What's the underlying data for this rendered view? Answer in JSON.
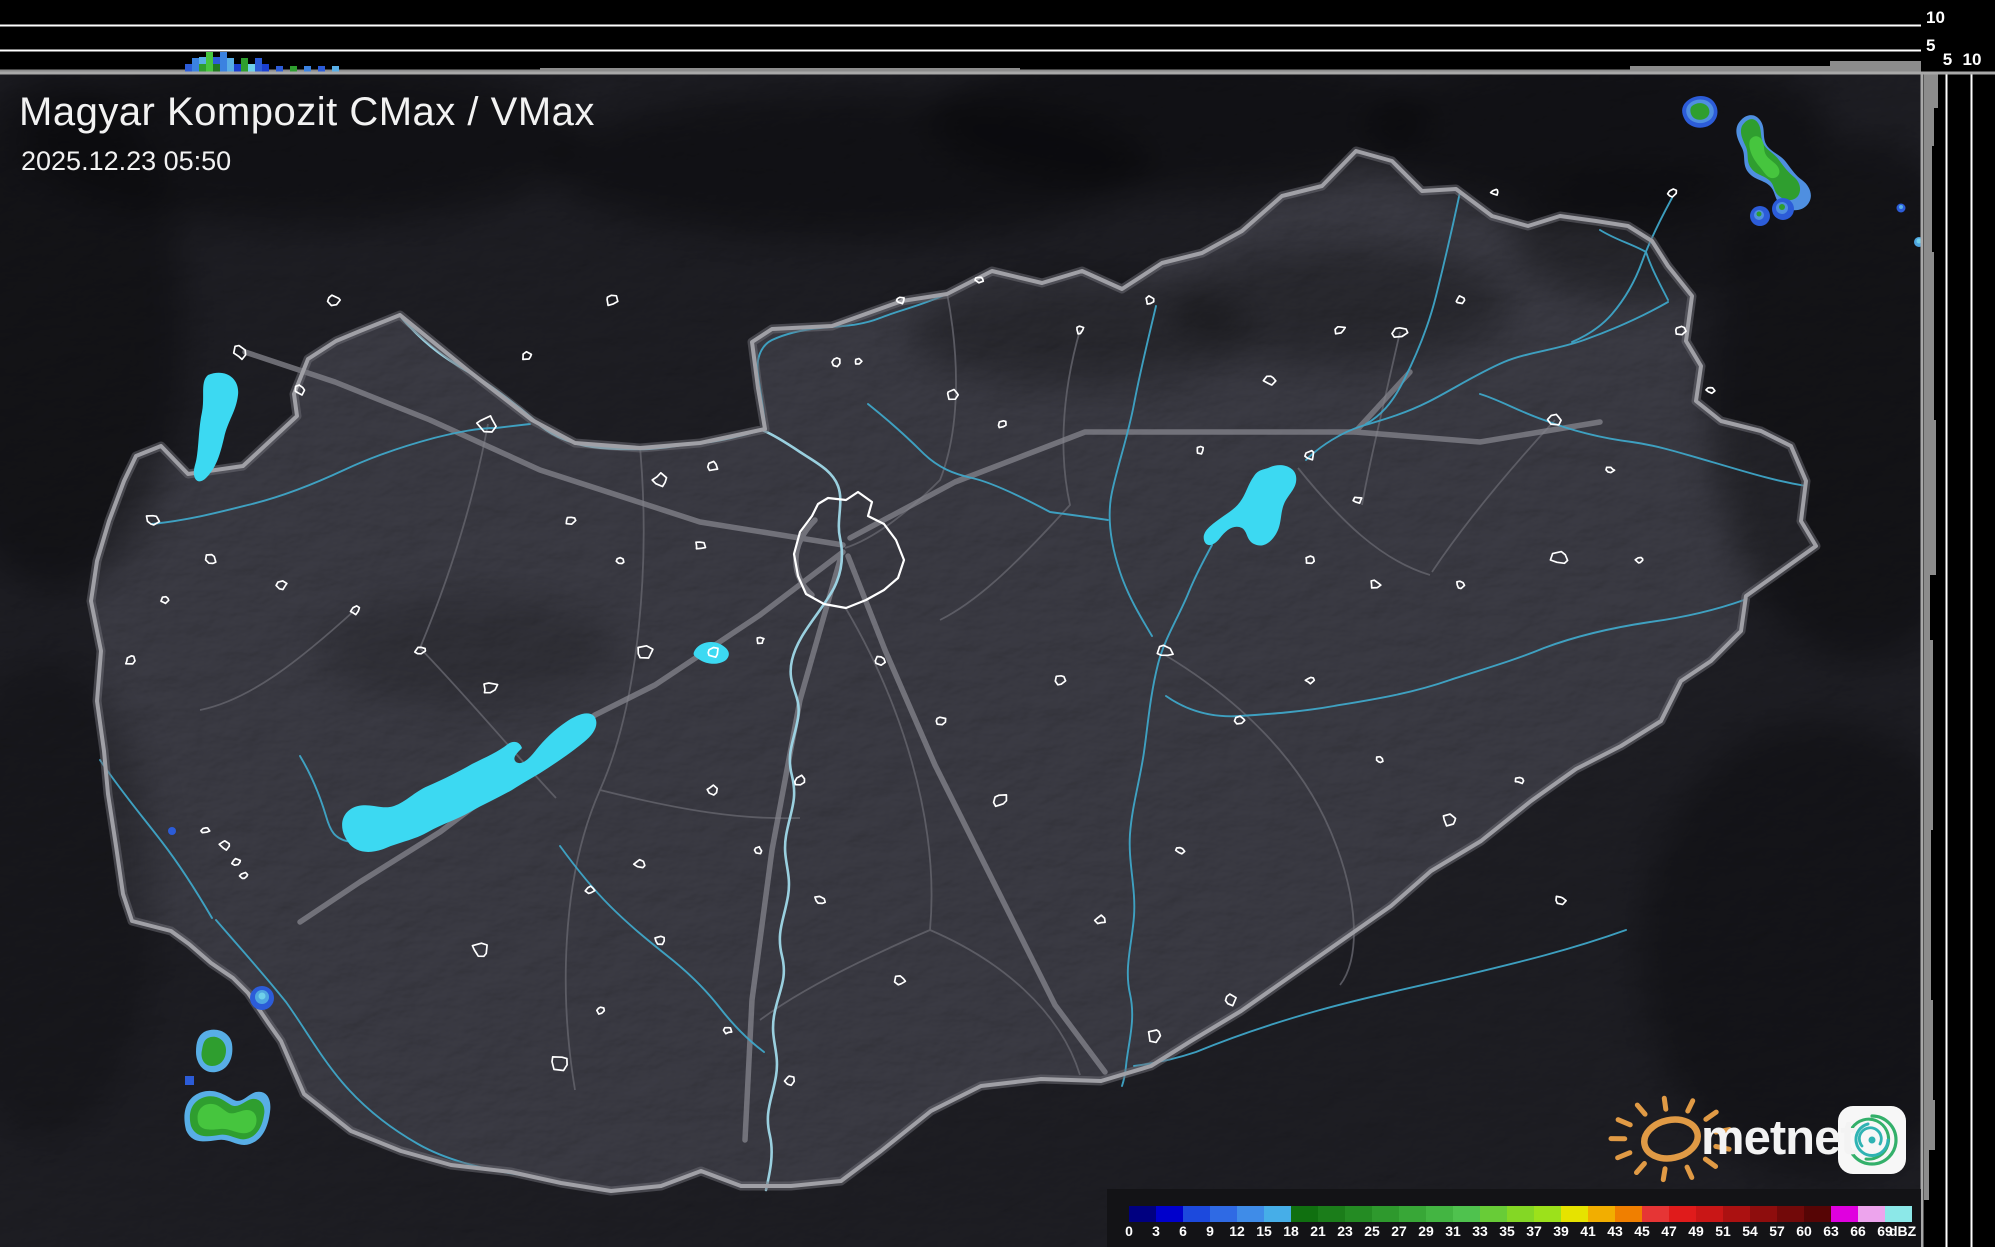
{
  "header": {
    "title": "Magyar Kompozit CMax / VMax",
    "timestamp": "2025.12.23 05:50"
  },
  "profile_panels": {
    "top": {
      "unit_ticks": [
        "10",
        "5"
      ]
    },
    "right": {
      "unit_ticks": [
        "5",
        "10"
      ]
    }
  },
  "legend": {
    "unit": "dBZ",
    "entries": [
      {
        "value": "0",
        "color": "#000080"
      },
      {
        "value": "3",
        "color": "#0000cc"
      },
      {
        "value": "6",
        "color": "#1c49dd"
      },
      {
        "value": "9",
        "color": "#2f6ae4"
      },
      {
        "value": "12",
        "color": "#3f8ce8"
      },
      {
        "value": "15",
        "color": "#46aee8"
      },
      {
        "value": "18",
        "color": "#107010"
      },
      {
        "value": "21",
        "color": "#1b7d1a"
      },
      {
        "value": "23",
        "color": "#248b23"
      },
      {
        "value": "25",
        "color": "#2e992d"
      },
      {
        "value": "27",
        "color": "#38a737"
      },
      {
        "value": "29",
        "color": "#43b542"
      },
      {
        "value": "31",
        "color": "#4fc24e"
      },
      {
        "value": "33",
        "color": "#68cc37"
      },
      {
        "value": "35",
        "color": "#84d725"
      },
      {
        "value": "37",
        "color": "#9ce11b"
      },
      {
        "value": "39",
        "color": "#e6e300"
      },
      {
        "value": "41",
        "color": "#f2ae00"
      },
      {
        "value": "43",
        "color": "#f07f00"
      },
      {
        "value": "45",
        "color": "#e63535"
      },
      {
        "value": "47",
        "color": "#e01b1b"
      },
      {
        "value": "49",
        "color": "#c91616"
      },
      {
        "value": "51",
        "color": "#ab1111"
      },
      {
        "value": "54",
        "color": "#8e0d0d"
      },
      {
        "value": "57",
        "color": "#720909"
      },
      {
        "value": "60",
        "color": "#560505"
      },
      {
        "value": "63",
        "color": "#e000df"
      },
      {
        "value": "66",
        "color": "#eda4ed"
      },
      {
        "value": "69",
        "color": "#8ce8e8"
      }
    ]
  },
  "branding": {
    "wordmark": "metnet"
  },
  "theme": {
    "outside_fill": "#2b2b30",
    "country_fill": "#45454d",
    "border_gray": "#a0a0a6",
    "river_cyan": "#4fb8d8",
    "danube_cyan": "#9fd8e8",
    "lake_cyan": "#3cd9f2",
    "panel_black": "#000000",
    "profile_gray": "#8c8c8c",
    "echo_blue": "#2c5cd8",
    "echo_light_blue": "#58aee6",
    "echo_green": "#2f9e2f",
    "echo_bright_green": "#46c53e",
    "sun_orange": "#e09a45",
    "icon_green": "#33b06a",
    "icon_teal": "#2fb3b3"
  }
}
